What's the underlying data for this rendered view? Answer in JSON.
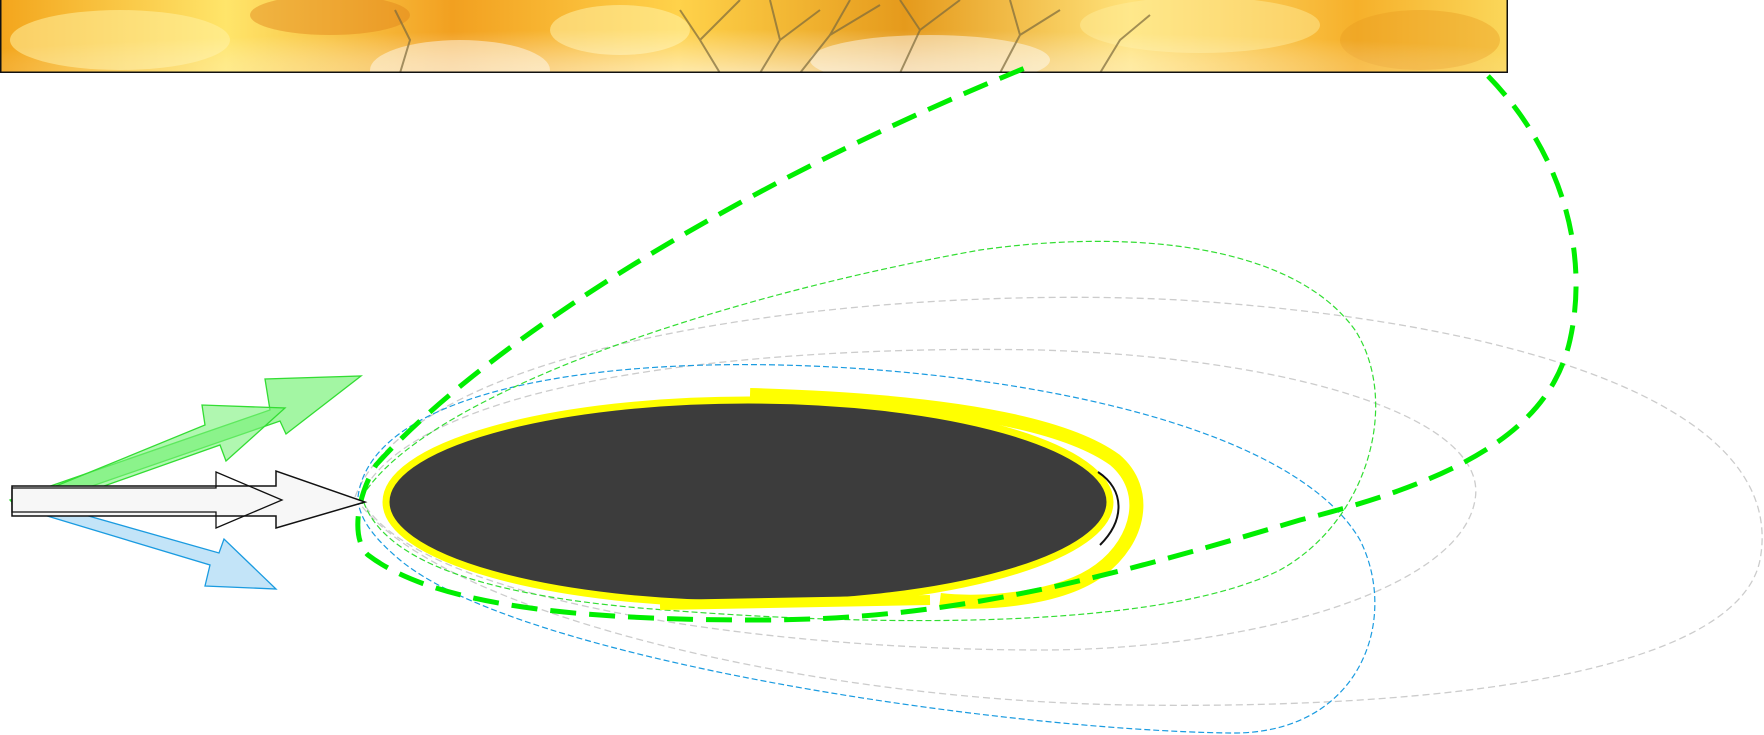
{
  "colors": {
    "background": "#ffffff",
    "banner_light": "#ffe25a",
    "banner_mid": "#f6b52a",
    "banner_dark": "#e08e12",
    "banner_branch": "#7c6a3c",
    "banner_frame": "#111111",
    "body_fill": "#3c3c3c",
    "highlight_yellow": "#ffff00",
    "green": "#00ee00",
    "green_thin": "#33dd33",
    "blue": "#1a9be0",
    "grey_outline": "#cccccc",
    "green_arrow_fill": "#7cf27c",
    "blue_arrow_fill": "#b9dff7",
    "white_arrow_fill": "#f7f7f7",
    "arrow_outline": "#111111"
  },
  "elements": {
    "banner": "autumn-foliage-image",
    "central_shape": "dark-ellipse",
    "outline_yellow": "yellow-contour",
    "curve_green_dashed": "large-green-dashed-loop",
    "curve_green_thin": "thin-green-dashed-loop",
    "curve_blue_thin": "thin-blue-dashed-loop",
    "curve_grey_outer": "grey-dashed-outer-loop",
    "curve_grey_mid": "grey-dashed-middle-loop",
    "arrows": [
      "green-arrow-upper",
      "green-arrow-lower",
      "blue-arrow",
      "white-arrow"
    ]
  }
}
